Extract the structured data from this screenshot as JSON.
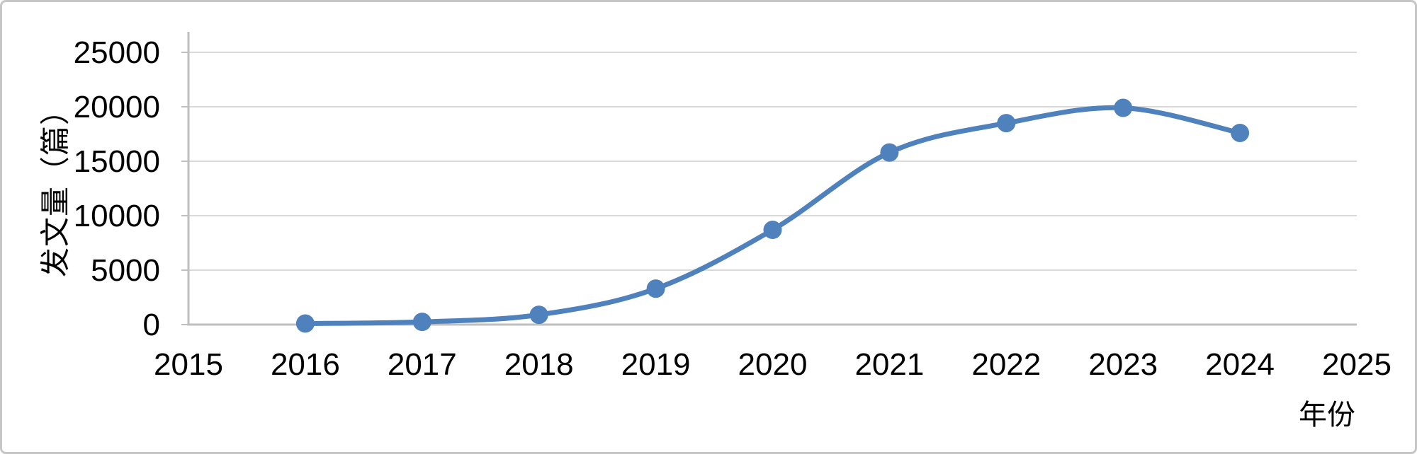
{
  "chart_data": {
    "type": "line",
    "title": "",
    "xlabel": "年份",
    "ylabel": "发文量（篇）",
    "x": [
      2016,
      2017,
      2018,
      2019,
      2020,
      2021,
      2022,
      2023,
      2024
    ],
    "series": [
      {
        "name": "发文量",
        "values": [
          100,
          250,
          900,
          3300,
          8700,
          15800,
          18500,
          19900,
          17600
        ]
      }
    ],
    "x_ticks": [
      "2015",
      "2016",
      "2017",
      "2018",
      "2019",
      "2020",
      "2021",
      "2022",
      "2023",
      "2024",
      "2025"
    ],
    "y_ticks": [
      "0",
      "5000",
      "10000",
      "15000",
      "20000",
      "25000"
    ],
    "xlim": [
      2015,
      2025
    ],
    "ylim": [
      0,
      25000
    ],
    "grid": "horizontal",
    "legend": "none",
    "smooth_line": true,
    "marker": "circle",
    "colors": {
      "line": "#4F81BD",
      "marker": "#4F81BD",
      "grid": "#D9D9D9",
      "axis": "#BFBFBF",
      "text": "#000000",
      "frame": "#C6C6C6"
    }
  }
}
